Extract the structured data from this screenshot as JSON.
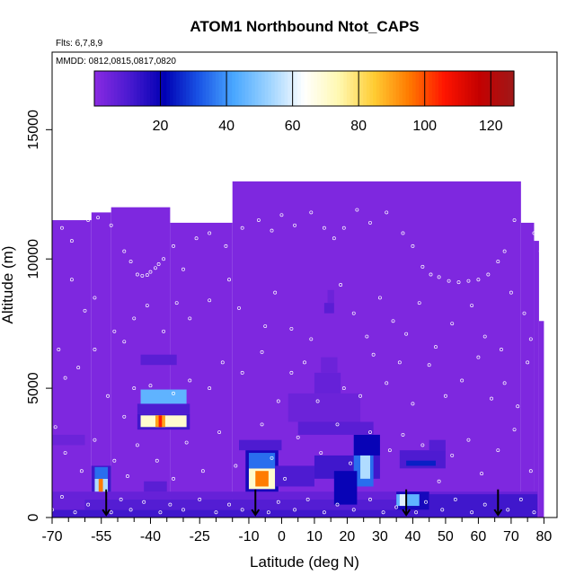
{
  "chart_data": {
    "type": "heatmap",
    "title": "ATOM1 Northbound Ntot_CAPS",
    "annotations": [
      "Flts: 6,7,8,9",
      "MMDD: 0812,0815,0817,0820"
    ],
    "xlabel": "Latitude (deg N)",
    "ylabel": "Altitude (m)",
    "xlim": [
      -70,
      84
    ],
    "ylim": [
      0,
      18000
    ],
    "x_ticks": [
      -70,
      -55,
      -40,
      -25,
      -10,
      0,
      10,
      20,
      30,
      40,
      50,
      60,
      70,
      80
    ],
    "x_minor_ticks": [
      -65,
      -60,
      -50,
      -45,
      -35,
      -30,
      -20,
      -15,
      -5,
      5,
      15,
      25,
      35,
      45,
      55,
      65,
      75
    ],
    "y_ticks": [
      0,
      5000,
      10000,
      15000
    ],
    "colorbar": {
      "range": [
        0,
        127
      ],
      "ticks": [
        20,
        40,
        60,
        80,
        100,
        120
      ],
      "colors": [
        "#8a2be2",
        "#4a1ad0",
        "#0000b3",
        "#1a55e6",
        "#4aa8ff",
        "#9dd3ff",
        "#ffffff",
        "#fff8b0",
        "#ffcc33",
        "#ff7a00",
        "#ff1500",
        "#c40000",
        "#a01818"
      ]
    },
    "background_value": 2,
    "coverage": [
      {
        "lat": [
          -70,
          -58
        ],
        "alt_max": 11500
      },
      {
        "lat": [
          -58,
          -52
        ],
        "alt_max": 11800
      },
      {
        "lat": [
          -52,
          -34
        ],
        "alt_max": 12000
      },
      {
        "lat": [
          -34,
          -15
        ],
        "alt_max": 11400
      },
      {
        "lat": [
          -15,
          73
        ],
        "alt_max": 13000
      },
      {
        "lat": [
          73,
          77
        ],
        "alt_max": 11400
      },
      {
        "lat": [
          77,
          78.5
        ],
        "alt_max": 10700
      },
      {
        "lat": [
          78.5,
          80
        ],
        "alt_max": 7600
      }
    ],
    "cells": [
      {
        "lat": [
          -70,
          78
        ],
        "alt": [
          0,
          300
        ],
        "v": 12
      },
      {
        "lat": [
          -70,
          -60
        ],
        "alt": [
          300,
          700
        ],
        "v": 6
      },
      {
        "lat": [
          -60,
          78
        ],
        "alt": [
          300,
          700
        ],
        "v": 9
      },
      {
        "lat": [
          -70,
          78
        ],
        "alt": [
          700,
          1000
        ],
        "v": 6
      },
      {
        "lat": [
          -58,
          -52
        ],
        "alt": [
          1000,
          2000
        ],
        "v": 12
      },
      {
        "lat": [
          -57,
          -53
        ],
        "alt": [
          1000,
          1500
        ],
        "v": 55
      },
      {
        "lat": [
          -55.8,
          -54.5
        ],
        "alt": [
          1000,
          1500
        ],
        "v": 95
      },
      {
        "lat": [
          -57,
          -53
        ],
        "alt": [
          1500,
          1950
        ],
        "v": 35
      },
      {
        "lat": [
          -44,
          -28
        ],
        "alt": [
          3400,
          4000
        ],
        "v": 12
      },
      {
        "lat": [
          -43,
          -29
        ],
        "alt": [
          3500,
          3950
        ],
        "v": 70
      },
      {
        "lat": [
          -38.5,
          -35.5
        ],
        "alt": [
          3500,
          3950
        ],
        "v": 90
      },
      {
        "lat": [
          -37.5,
          -36.5
        ],
        "alt": [
          3500,
          3950
        ],
        "v": 105
      },
      {
        "lat": [
          -44,
          -28
        ],
        "alt": [
          4000,
          4400
        ],
        "v": 10
      },
      {
        "lat": [
          -43,
          -29
        ],
        "alt": [
          4400,
          4950
        ],
        "v": 45
      },
      {
        "lat": [
          -43,
          -32
        ],
        "alt": [
          5900,
          6300
        ],
        "v": 8
      },
      {
        "lat": [
          -13,
          0
        ],
        "alt": [
          2600,
          3000
        ],
        "v": 10
      },
      {
        "lat": [
          -11,
          -1
        ],
        "alt": [
          1000,
          2600
        ],
        "v": 18
      },
      {
        "lat": [
          -10,
          -2
        ],
        "alt": [
          1100,
          1900
        ],
        "v": 70
      },
      {
        "lat": [
          -8,
          -4
        ],
        "alt": [
          1200,
          1800
        ],
        "v": 95
      },
      {
        "lat": [
          -10,
          -2
        ],
        "alt": [
          1900,
          2500
        ],
        "v": 35
      },
      {
        "lat": [
          -2,
          10
        ],
        "alt": [
          1200,
          2000
        ],
        "v": 10
      },
      {
        "lat": [
          10,
          30
        ],
        "alt": [
          1500,
          2400
        ],
        "v": 12
      },
      {
        "lat": [
          22,
          28
        ],
        "alt": [
          1200,
          3000
        ],
        "v": 35
      },
      {
        "lat": [
          24,
          27
        ],
        "alt": [
          1500,
          2500
        ],
        "v": 55
      },
      {
        "lat": [
          22,
          30
        ],
        "alt": [
          2400,
          3200
        ],
        "v": 20
      },
      {
        "lat": [
          16,
          23
        ],
        "alt": [
          500,
          1800
        ],
        "v": 20
      },
      {
        "lat": [
          5,
          28
        ],
        "alt": [
          3200,
          3700
        ],
        "v": 8
      },
      {
        "lat": [
          2,
          24
        ],
        "alt": [
          3700,
          4800
        ],
        "v": 5
      },
      {
        "lat": [
          10,
          18
        ],
        "alt": [
          4800,
          5600
        ],
        "v": 6
      },
      {
        "lat": [
          12,
          17
        ],
        "alt": [
          5600,
          6200
        ],
        "v": 5
      },
      {
        "lat": [
          13,
          16
        ],
        "alt": [
          7900,
          8300
        ],
        "v": 8
      },
      {
        "lat": [
          14,
          16
        ],
        "alt": [
          8300,
          8800
        ],
        "v": 5
      },
      {
        "lat": [
          35,
          45
        ],
        "alt": [
          300,
          1000
        ],
        "v": 18
      },
      {
        "lat": [
          35,
          42
        ],
        "alt": [
          450,
          900
        ],
        "v": 45
      },
      {
        "lat": [
          36,
          38
        ],
        "alt": [
          450,
          900
        ],
        "v": 60
      },
      {
        "lat": [
          36,
          50
        ],
        "alt": [
          1900,
          2600
        ],
        "v": 10
      },
      {
        "lat": [
          45,
          50
        ],
        "alt": [
          2600,
          3000
        ],
        "v": 9
      },
      {
        "lat": [
          38,
          47
        ],
        "alt": [
          2000,
          2200
        ],
        "v": 25
      },
      {
        "lat": [
          45,
          78
        ],
        "alt": [
          100,
          900
        ],
        "v": 12
      },
      {
        "lat": [
          -42,
          -35
        ],
        "alt": [
          1000,
          1400
        ],
        "v": 8
      },
      {
        "lat": [
          -70,
          -60
        ],
        "alt": [
          2800,
          3200
        ],
        "v": 5
      }
    ],
    "arrow_lats": [
      -53.5,
      -8,
      38,
      66
    ],
    "profile_points": [
      [
        -67,
        11200
      ],
      [
        -64,
        10700
      ],
      [
        -59,
        11500
      ],
      [
        -56,
        11600
      ],
      [
        -52,
        11300
      ],
      [
        -48,
        10300
      ],
      [
        -46,
        9900
      ],
      [
        -44,
        9400
      ],
      [
        -42.5,
        9350
      ],
      [
        -41,
        9380
      ],
      [
        -40,
        9500
      ],
      [
        -38.5,
        9650
      ],
      [
        -37.5,
        9800
      ],
      [
        -36,
        10000
      ],
      [
        -33,
        10500
      ],
      [
        -30,
        9600
      ],
      [
        -26,
        10800
      ],
      [
        -22,
        11000
      ],
      [
        -17,
        10500
      ],
      [
        -12,
        11200
      ],
      [
        -7,
        11500
      ],
      [
        -3,
        11100
      ],
      [
        0,
        11700
      ],
      [
        4,
        11300
      ],
      [
        9,
        11800
      ],
      [
        13,
        11200
      ],
      [
        16,
        10800
      ],
      [
        19,
        11200
      ],
      [
        23,
        11900
      ],
      [
        27,
        11400
      ],
      [
        32,
        11800
      ],
      [
        37,
        11000
      ],
      [
        40,
        10500
      ],
      [
        43,
        9700
      ],
      [
        45.5,
        9400
      ],
      [
        48,
        9300
      ],
      [
        51,
        9150
      ],
      [
        54,
        9100
      ],
      [
        57,
        9150
      ],
      [
        60,
        9200
      ],
      [
        63,
        9400
      ],
      [
        66,
        9900
      ],
      [
        68,
        10300
      ],
      [
        71,
        11500
      ],
      [
        74,
        11800
      ],
      [
        77,
        11000
      ],
      [
        79,
        10300
      ],
      [
        -64,
        9200
      ],
      [
        -60,
        8000
      ],
      [
        -57,
        8500
      ],
      [
        -51,
        7200
      ],
      [
        -48,
        6800
      ],
      [
        -45,
        7700
      ],
      [
        -41,
        8200
      ],
      [
        -36,
        7200
      ],
      [
        -32,
        8300
      ],
      [
        -28,
        7700
      ],
      [
        -22,
        8400
      ],
      [
        -16,
        9200
      ],
      [
        -13,
        8100
      ],
      [
        -5,
        7400
      ],
      [
        -2,
        8700
      ],
      [
        3,
        7300
      ],
      [
        9,
        6900
      ],
      [
        18,
        9000
      ],
      [
        22,
        7900
      ],
      [
        26,
        7000
      ],
      [
        30,
        8500
      ],
      [
        34,
        7600
      ],
      [
        38,
        7100
      ],
      [
        42,
        8300
      ],
      [
        47,
        6600
      ],
      [
        52,
        7500
      ],
      [
        58,
        8200
      ],
      [
        62,
        7000
      ],
      [
        67,
        6500
      ],
      [
        70,
        8700
      ],
      [
        74,
        7900
      ],
      [
        76,
        6900
      ],
      [
        -68,
        6500
      ],
      [
        -66,
        5400
      ],
      [
        -62,
        5800
      ],
      [
        -57,
        6500
      ],
      [
        -53,
        4700
      ],
      [
        -48,
        3900
      ],
      [
        -45,
        5000
      ],
      [
        -40,
        5100
      ],
      [
        -33,
        4800
      ],
      [
        -28,
        5300
      ],
      [
        -22,
        5000
      ],
      [
        -18,
        6000
      ],
      [
        -12,
        5600
      ],
      [
        -6,
        6400
      ],
      [
        -1,
        4500
      ],
      [
        3,
        5600
      ],
      [
        7,
        6000
      ],
      [
        11,
        4500
      ],
      [
        19,
        5000
      ],
      [
        24,
        4700
      ],
      [
        28,
        6300
      ],
      [
        32,
        5200
      ],
      [
        36,
        6000
      ],
      [
        40,
        4400
      ],
      [
        45,
        5900
      ],
      [
        50,
        4700
      ],
      [
        55,
        5300
      ],
      [
        60,
        6200
      ],
      [
        64,
        4600
      ],
      [
        68,
        5200
      ],
      [
        72,
        4300
      ],
      [
        75,
        6000
      ],
      [
        -69,
        3500
      ],
      [
        -66,
        2500
      ],
      [
        -61,
        1800
      ],
      [
        -57,
        3000
      ],
      [
        -51,
        2200
      ],
      [
        -47,
        1600
      ],
      [
        -44,
        2800
      ],
      [
        -38,
        2200
      ],
      [
        -33,
        1500
      ],
      [
        -29,
        2900
      ],
      [
        -24,
        1800
      ],
      [
        -19,
        3300
      ],
      [
        -14,
        2000
      ],
      [
        -6,
        3600
      ],
      [
        -3,
        2300
      ],
      [
        1,
        1500
      ],
      [
        5,
        3100
      ],
      [
        12,
        2500
      ],
      [
        17,
        3600
      ],
      [
        21,
        2100
      ],
      [
        27,
        3300
      ],
      [
        33,
        2600
      ],
      [
        37,
        3200
      ],
      [
        43,
        2800
      ],
      [
        48,
        1400
      ],
      [
        52,
        2400
      ],
      [
        57,
        3000
      ],
      [
        61,
        1700
      ],
      [
        66,
        2600
      ],
      [
        71,
        3400
      ],
      [
        76,
        1800
      ],
      [
        -70,
        300
      ],
      [
        -67,
        800
      ],
      [
        -63,
        200
      ],
      [
        -59,
        500
      ],
      [
        -52,
        200
      ],
      [
        -49,
        700
      ],
      [
        -46,
        300
      ],
      [
        -42,
        600
      ],
      [
        -37,
        200
      ],
      [
        -34,
        500
      ],
      [
        -30,
        300
      ],
      [
        -25,
        700
      ],
      [
        -20,
        200
      ],
      [
        -16,
        500
      ],
      [
        -12,
        300
      ],
      [
        -4,
        200
      ],
      [
        -1,
        600
      ],
      [
        4,
        300
      ],
      [
        8,
        700
      ],
      [
        13,
        200
      ],
      [
        17,
        500
      ],
      [
        22,
        300
      ],
      [
        27,
        700
      ],
      [
        31,
        200
      ],
      [
        35,
        400
      ],
      [
        41,
        200
      ],
      [
        44,
        600
      ],
      [
        49,
        300
      ],
      [
        53,
        700
      ],
      [
        58,
        200
      ],
      [
        62,
        500
      ],
      [
        69,
        300
      ],
      [
        73,
        700
      ],
      [
        77,
        200
      ]
    ]
  }
}
